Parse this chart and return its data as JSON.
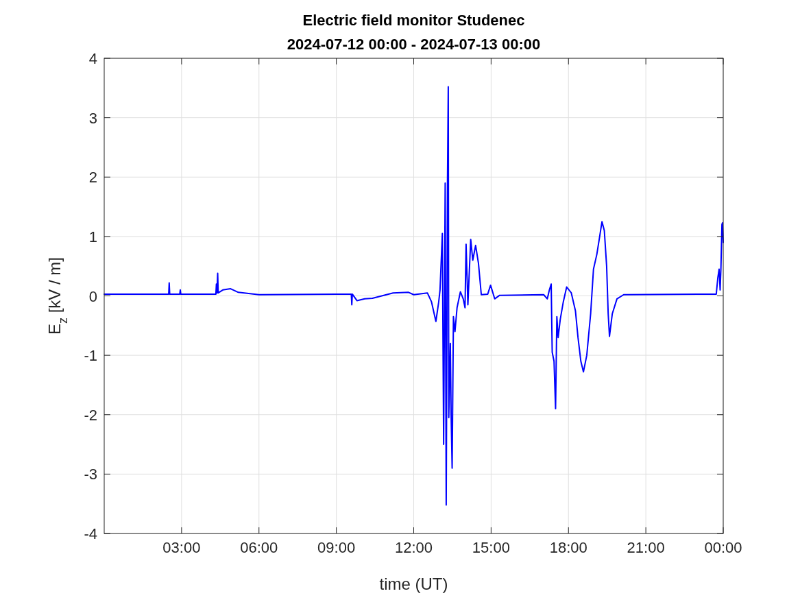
{
  "chart_data": {
    "type": "line",
    "title": "Electric field monitor Studenec",
    "subtitle": "2024-07-12 00:00 - 2024-07-13 00:00",
    "xlabel": "time (UT)",
    "ylabel": "E$_{z}$ [kV / m]",
    "xlim": [
      0,
      24
    ],
    "ylim": [
      -4,
      4
    ],
    "xticks": [
      {
        "value": 3,
        "label": "03:00"
      },
      {
        "value": 6,
        "label": "06:00"
      },
      {
        "value": 9,
        "label": "09:00"
      },
      {
        "value": 12,
        "label": "12:00"
      },
      {
        "value": 15,
        "label": "15:00"
      },
      {
        "value": 18,
        "label": "18:00"
      },
      {
        "value": 21,
        "label": "21:00"
      },
      {
        "value": 24,
        "label": "00:00"
      }
    ],
    "yticks": [
      -4,
      -3,
      -2,
      -1,
      0,
      1,
      2,
      3,
      4
    ],
    "grid": true,
    "line_style": "solid",
    "series": [
      {
        "color": "#0000ff",
        "x": [
          0,
          2.5,
          2.52,
          2.54,
          2.93,
          2.95,
          2.97,
          4.33,
          4.35,
          4.37,
          4.4,
          4.42,
          4.6,
          4.9,
          5.2,
          6,
          9,
          9.58,
          9.6,
          9.62,
          9.8,
          10.1,
          10.4,
          11.2,
          11.8,
          12,
          12.53,
          12.69,
          12.86,
          12.97,
          13.02,
          13.11,
          13.16,
          13.22,
          13.26,
          13.31,
          13.34,
          13.36,
          13.42,
          13.45,
          13.49,
          13.54,
          13.6,
          13.68,
          13.81,
          13.92,
          13.99,
          14.03,
          14.1,
          14.21,
          14.29,
          14.4,
          14.51,
          14.62,
          14.87,
          14.98,
          15.14,
          15.33,
          17.04,
          17.18,
          17.26,
          17.33,
          17.37,
          17.44,
          17.5,
          17.55,
          17.6,
          17.68,
          17.8,
          17.93,
          18.11,
          18.27,
          18.37,
          18.48,
          18.58,
          18.71,
          18.86,
          18.97,
          19.1,
          19.21,
          19.3,
          19.39,
          19.48,
          19.54,
          19.59,
          19.7,
          19.88,
          20.14,
          23.5,
          23.73,
          23.79,
          23.84,
          23.88,
          23.91,
          23.95,
          23.97,
          24
        ],
        "values": [
          0.03,
          0.03,
          0.22,
          0.03,
          0.03,
          0.1,
          0.03,
          0.03,
          0.2,
          0.05,
          0.38,
          0.05,
          0.1,
          0.12,
          0.06,
          0.02,
          0.03,
          0.03,
          -0.15,
          0.03,
          -0.08,
          -0.05,
          -0.04,
          0.05,
          0.06,
          0.02,
          0.05,
          -0.1,
          -0.43,
          -0.1,
          0.1,
          1.05,
          -2.5,
          1.9,
          -3.52,
          1.97,
          3.52,
          -2.05,
          -0.8,
          -2,
          -2.9,
          -0.35,
          -0.6,
          -0.2,
          0.07,
          -0.05,
          -0.2,
          0.87,
          -0.15,
          0.95,
          0.6,
          0.85,
          0.55,
          0.02,
          0.03,
          0.18,
          -0.05,
          0.01,
          0.02,
          -0.05,
          0.1,
          0.2,
          -0.95,
          -1.1,
          -1.9,
          -0.35,
          -0.7,
          -0.4,
          -0.1,
          0.15,
          0.05,
          -0.25,
          -0.7,
          -1.1,
          -1.28,
          -1,
          -0.3,
          0.45,
          0.7,
          1,
          1.25,
          1.1,
          0.5,
          -0.3,
          -0.68,
          -0.3,
          -0.05,
          0.02,
          0.03,
          0.03,
          0.3,
          0.45,
          0.1,
          0.45,
          1.2,
          1.23,
          0.9
        ]
      }
    ]
  }
}
